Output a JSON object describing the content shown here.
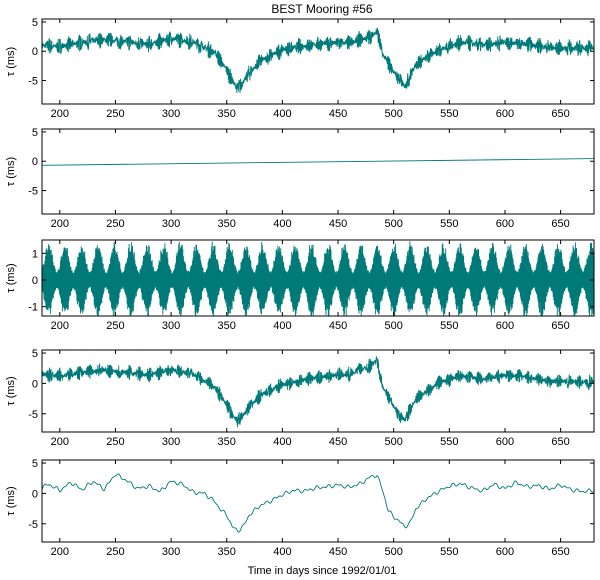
{
  "figure": {
    "title": "BEST Mooring #56",
    "xlabel": "Time in days since 1992/01/01"
  },
  "chart_data": [
    {
      "type": "line",
      "title": "BEST Mooring #56",
      "ylabel": "τ (ms)",
      "xlim": [
        184,
        680
      ],
      "ylim": [
        -9,
        5.5
      ],
      "xticks": [
        200,
        250,
        300,
        350,
        400,
        450,
        500,
        550,
        600,
        650
      ],
      "yticks": [
        -5,
        0,
        5
      ],
      "color": "#007a78",
      "series": [
        {
          "x": [
            184,
            200,
            220,
            240,
            260,
            280,
            300,
            320,
            340,
            350,
            355,
            360,
            370,
            380,
            400,
            420,
            440,
            460,
            480,
            485,
            490,
            500,
            505,
            510,
            520,
            540,
            560,
            580,
            600,
            620,
            640,
            660,
            680
          ],
          "values": [
            1.0,
            0.8,
            1.5,
            2.0,
            1.6,
            1.2,
            2.2,
            1.6,
            -0.3,
            -3.2,
            -5.0,
            -6.5,
            -3.8,
            -1.7,
            0.3,
            0.9,
            1.4,
            1.4,
            2.5,
            3.5,
            -0.5,
            -3.5,
            -4.8,
            -6.0,
            -2.2,
            0.2,
            1.5,
            1.0,
            1.6,
            1.2,
            0.6,
            0.5,
            0.6
          ],
          "noise_amplitude": 1.5
        }
      ]
    },
    {
      "type": "line",
      "ylabel": "τ (ms)",
      "xlim": [
        184,
        680
      ],
      "ylim": [
        -9,
        5.5
      ],
      "xticks": [
        200,
        250,
        300,
        350,
        400,
        450,
        500,
        550,
        600,
        650
      ],
      "yticks": [
        -5,
        0,
        5
      ],
      "color": "#007a78",
      "series": [
        {
          "x": [
            184,
            680
          ],
          "values": [
            -0.7,
            0.45
          ]
        }
      ]
    },
    {
      "type": "line",
      "ylabel": "τ (ms)",
      "xlim": [
        184,
        680
      ],
      "ylim": [
        -1.35,
        1.5
      ],
      "xticks": [
        200,
        250,
        300,
        350,
        400,
        450,
        500,
        550,
        600,
        650
      ],
      "yticks": [
        -1,
        0,
        1
      ],
      "color": "#007a78",
      "series": [
        {
          "oscillation": "tidal",
          "envelope_period_days": 14.77,
          "envelope_min": 0.3,
          "envelope_max": 1.3
        }
      ]
    },
    {
      "type": "line",
      "ylabel": "τ (ms)",
      "xlim": [
        184,
        680
      ],
      "ylim": [
        -8,
        5.5
      ],
      "xticks": [
        200,
        250,
        300,
        350,
        400,
        450,
        500,
        550,
        600,
        650
      ],
      "yticks": [
        -5,
        0,
        5
      ],
      "color": "#007a78",
      "series": [
        {
          "x": [
            184,
            200,
            220,
            240,
            260,
            280,
            300,
            320,
            340,
            350,
            355,
            360,
            370,
            380,
            400,
            420,
            440,
            460,
            480,
            485,
            490,
            500,
            505,
            510,
            520,
            540,
            560,
            580,
            600,
            620,
            640,
            660,
            680
          ],
          "values": [
            1.5,
            1.2,
            1.8,
            2.2,
            1.8,
            1.4,
            2.3,
            1.5,
            -0.8,
            -3.5,
            -5.2,
            -6.3,
            -4.0,
            -2.0,
            -0.2,
            0.6,
            1.2,
            1.5,
            3.0,
            3.8,
            -0.5,
            -3.8,
            -5.2,
            -6.0,
            -2.6,
            0.0,
            1.3,
            0.7,
            1.4,
            1.0,
            0.4,
            0.3,
            0.2
          ],
          "noise_amplitude": 1.3
        }
      ]
    },
    {
      "type": "line",
      "ylabel": "τ (ms)",
      "xlabel": "Time in days since 1992/01/01",
      "xlim": [
        184,
        680
      ],
      "ylim": [
        -8,
        5.5
      ],
      "xticks": [
        200,
        250,
        300,
        350,
        400,
        450,
        500,
        550,
        600,
        650
      ],
      "yticks": [
        -5,
        0,
        5
      ],
      "color": "#007a78",
      "series": [
        {
          "x": [
            184,
            190,
            200,
            210,
            220,
            230,
            240,
            250,
            260,
            270,
            280,
            290,
            300,
            310,
            320,
            330,
            340,
            345,
            350,
            355,
            360,
            365,
            370,
            380,
            390,
            400,
            410,
            420,
            430,
            440,
            450,
            460,
            470,
            480,
            485,
            490,
            495,
            500,
            505,
            510,
            515,
            520,
            530,
            540,
            550,
            560,
            570,
            580,
            590,
            600,
            610,
            620,
            630,
            640,
            650,
            660,
            670,
            680
          ],
          "values": [
            1.0,
            1.5,
            0.5,
            1.8,
            0.6,
            2.0,
            0.7,
            3.2,
            2.1,
            0.8,
            1.2,
            0.3,
            2.0,
            1.5,
            0.2,
            0.0,
            -1.5,
            -2.8,
            -3.5,
            -5.5,
            -6.2,
            -5.4,
            -3.6,
            -2.0,
            -1.2,
            -0.2,
            0.5,
            0.4,
            0.9,
            1.1,
            1.4,
            1.0,
            1.6,
            2.8,
            3.0,
            0.6,
            -2.8,
            -3.8,
            -4.6,
            -5.5,
            -4.8,
            -2.5,
            -0.8,
            0.3,
            1.2,
            1.6,
            0.9,
            0.4,
            1.5,
            0.8,
            1.8,
            1.1,
            1.3,
            0.7,
            1.4,
            0.6,
            0.3,
            0.5
          ]
        }
      ]
    }
  ]
}
